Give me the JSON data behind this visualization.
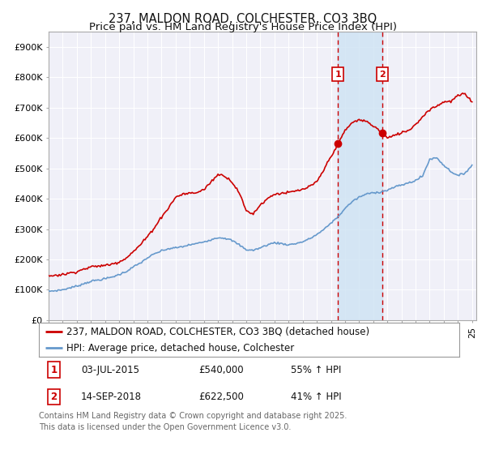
{
  "title": "237, MALDON ROAD, COLCHESTER, CO3 3BQ",
  "subtitle": "Price paid vs. HM Land Registry's House Price Index (HPI)",
  "ylim": [
    0,
    950000
  ],
  "yticks": [
    0,
    100000,
    200000,
    300000,
    400000,
    500000,
    600000,
    700000,
    800000,
    900000
  ],
  "ytick_labels": [
    "£0",
    "£100K",
    "£200K",
    "£300K",
    "£400K",
    "£500K",
    "£600K",
    "£700K",
    "£800K",
    "£900K"
  ],
  "hpi_color": "#6699cc",
  "price_color": "#cc0000",
  "marker1_price": 540000,
  "marker2_price": 622500,
  "sale1_date": "03-JUL-2015",
  "sale2_date": "14-SEP-2018",
  "sale1_pct": "55% ↑ HPI",
  "sale2_pct": "41% ↑ HPI",
  "legend_line1": "237, MALDON ROAD, COLCHESTER, CO3 3BQ (detached house)",
  "legend_line2": "HPI: Average price, detached house, Colchester",
  "footer": "Contains HM Land Registry data © Crown copyright and database right 2025.\nThis data is licensed under the Open Government Licence v3.0.",
  "bg_color": "#ffffff",
  "plot_bg_color": "#f0f0f8",
  "grid_color": "#ffffff",
  "shade_color": "#d0e4f4",
  "title_fontsize": 10.5,
  "subtitle_fontsize": 9.5,
  "tick_fontsize": 8,
  "legend_fontsize": 8.5,
  "footer_fontsize": 7
}
